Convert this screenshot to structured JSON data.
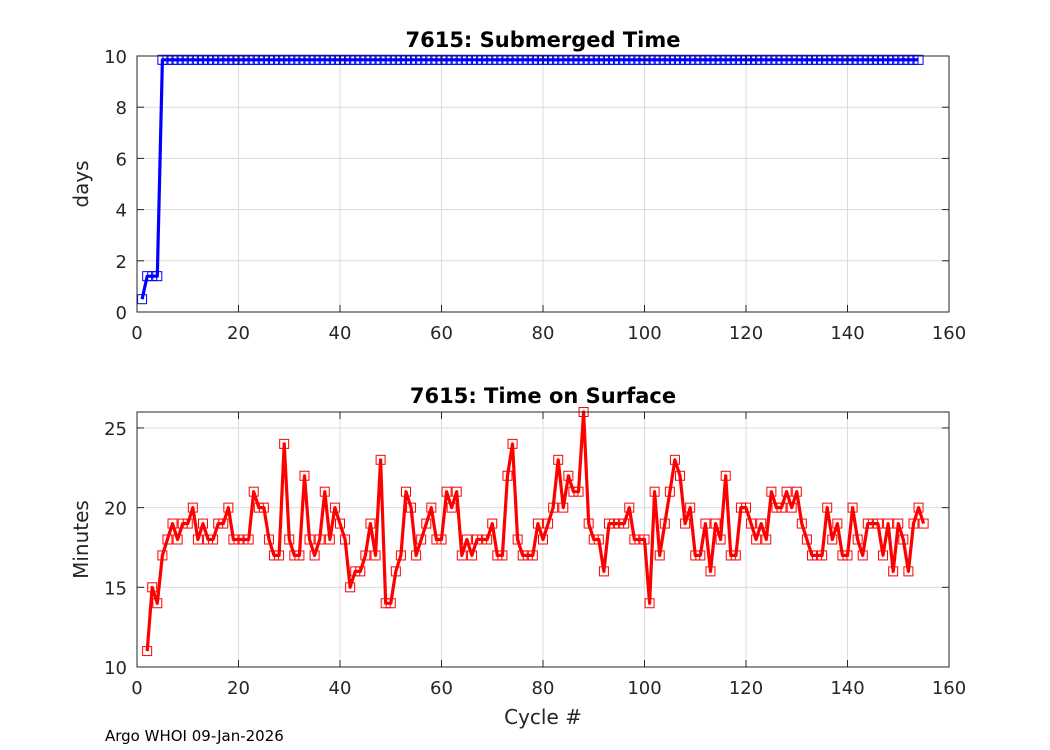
{
  "footer": "Argo WHOI 09-Jan-2026",
  "chart_data": [
    {
      "type": "line",
      "title": "7615: Submerged Time",
      "xlabel": "",
      "ylabel": "days",
      "xlim": [
        0,
        160
      ],
      "ylim": [
        0,
        10
      ],
      "xticks": [
        0,
        20,
        40,
        60,
        80,
        100,
        120,
        140,
        160
      ],
      "yticks": [
        0,
        2,
        4,
        6,
        8,
        10
      ],
      "grid": true,
      "color": "#0000ff",
      "marker": "square",
      "series": [
        {
          "x": [
            1,
            2,
            3,
            4,
            5,
            154
          ],
          "y": [
            0.5,
            1.4,
            1.4,
            1.4,
            9.85,
            9.85
          ],
          "note_x_range": "cycles 5-154 constant at ~9.85 days"
        }
      ]
    },
    {
      "type": "line",
      "title": "7615: Time on Surface",
      "xlabel": "Cycle #",
      "ylabel": "Minutes",
      "xlim": [
        0,
        160
      ],
      "ylim": [
        10,
        26
      ],
      "xticks": [
        0,
        20,
        40,
        60,
        80,
        100,
        120,
        140,
        160
      ],
      "yticks": [
        10,
        15,
        20,
        25
      ],
      "grid": true,
      "color": "#ff0000",
      "marker": "square",
      "series": [
        {
          "x_start": 2,
          "y": [
            11,
            15,
            14,
            17,
            18,
            19,
            18,
            19,
            19,
            20,
            18,
            19,
            18,
            18,
            19,
            19,
            20,
            18,
            18,
            18,
            18,
            21,
            20,
            20,
            18,
            17,
            17,
            24,
            18,
            17,
            17,
            22,
            18,
            17,
            18,
            21,
            18,
            20,
            19,
            18,
            15,
            16,
            16,
            17,
            19,
            17,
            23,
            14,
            14,
            16,
            17,
            21,
            20,
            17,
            18,
            19,
            20,
            18,
            18,
            21,
            20,
            21,
            17,
            18,
            17,
            18,
            18,
            18,
            19,
            17,
            17,
            22,
            24,
            18,
            17,
            17,
            17,
            19,
            18,
            19,
            20,
            23,
            20,
            22,
            21,
            21,
            26,
            19,
            18,
            18,
            16,
            19,
            19,
            19,
            19,
            20,
            18,
            18,
            18,
            14,
            21,
            17,
            19,
            21,
            23,
            22,
            19,
            20,
            17,
            17,
            19,
            16,
            19,
            18,
            22,
            17,
            17,
            20,
            20,
            19,
            18,
            19,
            18,
            21,
            20,
            20,
            21,
            20,
            21,
            19,
            18,
            17,
            17,
            17,
            20,
            18,
            19,
            17,
            17,
            20,
            18,
            17,
            19,
            19,
            19,
            17,
            19,
            16,
            19,
            18,
            16,
            19,
            20,
            19
          ]
        }
      ]
    }
  ]
}
